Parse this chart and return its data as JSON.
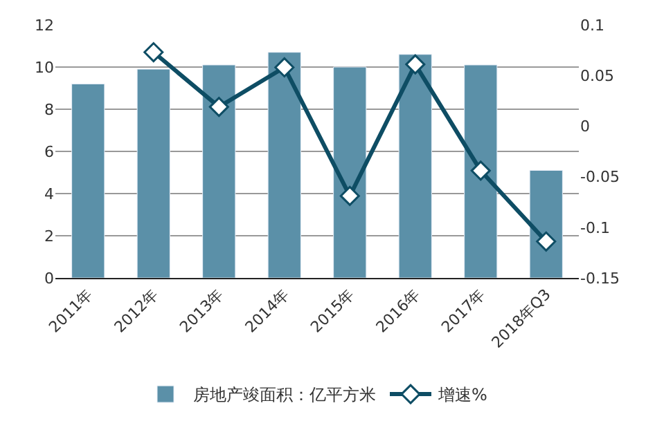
{
  "chart_data": {
    "type": "bar",
    "categories": [
      "2011年",
      "2012年",
      "2013年",
      "2014年",
      "2015年",
      "2016年",
      "2017年",
      "2018年Q3"
    ],
    "series": [
      {
        "name": "房地产竣面积：亿平方米",
        "color": "#5b90a8",
        "values": [
          9.2,
          9.9,
          10.1,
          10.7,
          10.0,
          10.6,
          10.1,
          5.1
        ]
      },
      {
        "name": "增速%",
        "type": "line",
        "axis": "y2",
        "color": "#0e4d64",
        "marker": "diamond",
        "values": [
          null,
          0.073,
          0.019,
          0.058,
          -0.069,
          0.061,
          -0.044,
          -0.114
        ]
      }
    ],
    "ylim": [
      0,
      12
    ],
    "yticks": [
      0,
      2,
      4,
      6,
      8,
      10,
      12
    ],
    "y2lim": [
      -0.15,
      0.1
    ],
    "y2ticks": [
      -0.15,
      -0.1,
      -0.05,
      0,
      0.05,
      0.1
    ],
    "grid": "y",
    "legend": "bottom"
  }
}
